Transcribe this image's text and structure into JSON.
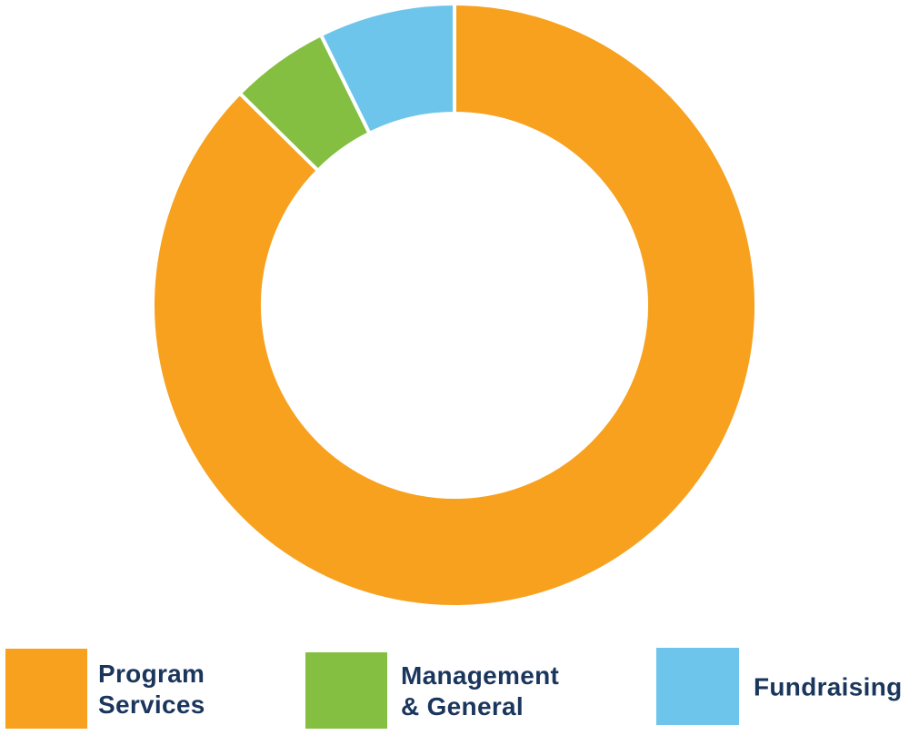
{
  "chart_data": {
    "type": "pie",
    "variant": "donut",
    "legend_position": "bottom",
    "segments": [
      {
        "label_lines": [
          "Program",
          "Services"
        ],
        "value": 87.4,
        "color": "#F7A11F"
      },
      {
        "label_lines": [
          "Management",
          "& General"
        ],
        "value": 5.3,
        "color": "#84BF41"
      },
      {
        "label_lines": [
          "Fundraising"
        ],
        "value": 7.3,
        "color": "#6DC5EC"
      }
    ]
  },
  "colors": {
    "legend_text": "#1B365D",
    "separator": "#FFFFFF",
    "background": "#FFFFFF"
  }
}
